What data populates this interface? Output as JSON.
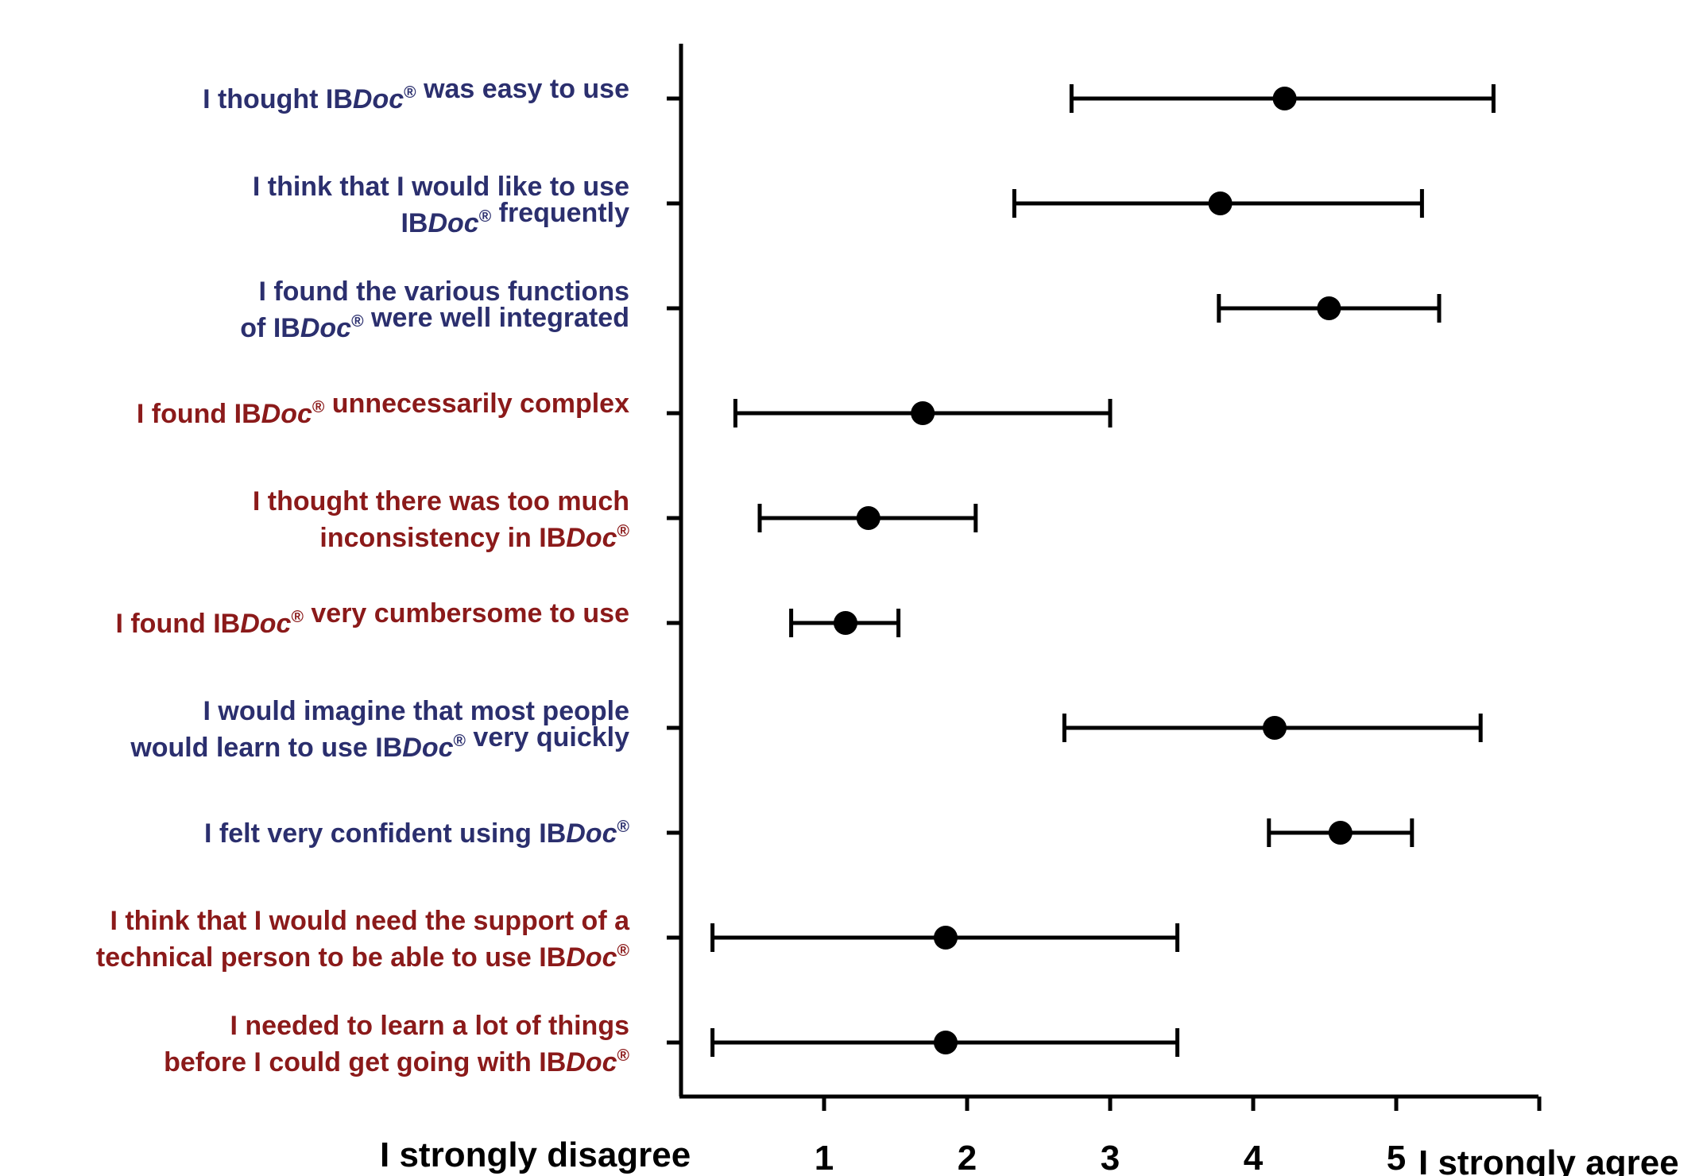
{
  "chart_data": {
    "type": "scatter",
    "subtype": "dot-with-error-bars",
    "xlim": [
      0,
      6
    ],
    "x_ticks": [
      1,
      2,
      3,
      4,
      5
    ],
    "x_tick_labels": [
      "1",
      "2",
      "3",
      "4",
      "5"
    ],
    "x_end_labels": {
      "left": "I strongly disagree",
      "right": "I strongly agree"
    },
    "grid": false,
    "colors": {
      "positive_item": "#2b2f6e",
      "negative_item": "#8b1a1a",
      "marks": "#000000"
    },
    "items": [
      {
        "label_lines": [
          [
            {
              "t": "I thought IB"
            },
            {
              "t": "Doc",
              "i": true
            },
            {
              "t": "®",
              "sup": true
            },
            {
              "t": " was easy to use"
            }
          ]
        ],
        "polarity": "positive",
        "mean": 4.22,
        "low": 2.73,
        "high": 5.68
      },
      {
        "label_lines": [
          [
            {
              "t": "I think that I would like to use"
            }
          ],
          [
            {
              "t": "IB"
            },
            {
              "t": "Doc",
              "i": true
            },
            {
              "t": "®",
              "sup": true
            },
            {
              "t": "  frequently"
            }
          ]
        ],
        "polarity": "positive",
        "mean": 3.77,
        "low": 2.33,
        "high": 5.18
      },
      {
        "label_lines": [
          [
            {
              "t": "I found the various functions"
            }
          ],
          [
            {
              "t": "of IB"
            },
            {
              "t": "Doc",
              "i": true
            },
            {
              "t": "®",
              "sup": true
            },
            {
              "t": " were well integrated"
            }
          ]
        ],
        "polarity": "positive",
        "mean": 4.53,
        "low": 3.76,
        "high": 5.3
      },
      {
        "label_lines": [
          [
            {
              "t": "I found IB"
            },
            {
              "t": "Doc",
              "i": true
            },
            {
              "t": "®",
              "sup": true
            },
            {
              "t": "  unnecessarily complex"
            }
          ]
        ],
        "polarity": "negative",
        "mean": 1.69,
        "low": 0.38,
        "high": 3.0
      },
      {
        "label_lines": [
          [
            {
              "t": "I thought there was too much"
            }
          ],
          [
            {
              "t": "inconsistency in IB"
            },
            {
              "t": "Doc",
              "i": true
            },
            {
              "t": "®",
              "sup": true
            }
          ]
        ],
        "polarity": "negative",
        "mean": 1.31,
        "low": 0.55,
        "high": 2.06
      },
      {
        "label_lines": [
          [
            {
              "t": "I found IB"
            },
            {
              "t": "Doc",
              "i": true
            },
            {
              "t": "®",
              "sup": true
            },
            {
              "t": "  very cumbersome to use"
            }
          ]
        ],
        "polarity": "negative",
        "mean": 1.15,
        "low": 0.77,
        "high": 1.52
      },
      {
        "label_lines": [
          [
            {
              "t": "I would imagine that most people"
            }
          ],
          [
            {
              "t": "would learn to use IB"
            },
            {
              "t": "Doc",
              "i": true
            },
            {
              "t": "®",
              "sup": true
            },
            {
              "t": " very quickly"
            }
          ]
        ],
        "polarity": "positive",
        "mean": 4.15,
        "low": 2.68,
        "high": 5.59
      },
      {
        "label_lines": [
          [
            {
              "t": "I felt very confident using IB"
            },
            {
              "t": "Doc",
              "i": true
            },
            {
              "t": "®",
              "sup": true
            }
          ]
        ],
        "polarity": "positive",
        "mean": 4.61,
        "low": 4.11,
        "high": 5.11
      },
      {
        "label_lines": [
          [
            {
              "t": "I think that I would need the support of a"
            }
          ],
          [
            {
              "t": "technical person to be able to use IB"
            },
            {
              "t": "Doc",
              "i": true
            },
            {
              "t": "®",
              "sup": true
            }
          ]
        ],
        "polarity": "negative",
        "mean": 1.85,
        "low": 0.22,
        "high": 3.47
      },
      {
        "label_lines": [
          [
            {
              "t": "I needed to learn a lot of things"
            }
          ],
          [
            {
              "t": "before I could get going with IB"
            },
            {
              "t": "Doc",
              "i": true
            },
            {
              "t": "®",
              "sup": true
            }
          ]
        ],
        "polarity": "negative",
        "mean": 1.85,
        "low": 0.22,
        "high": 3.47
      }
    ]
  }
}
